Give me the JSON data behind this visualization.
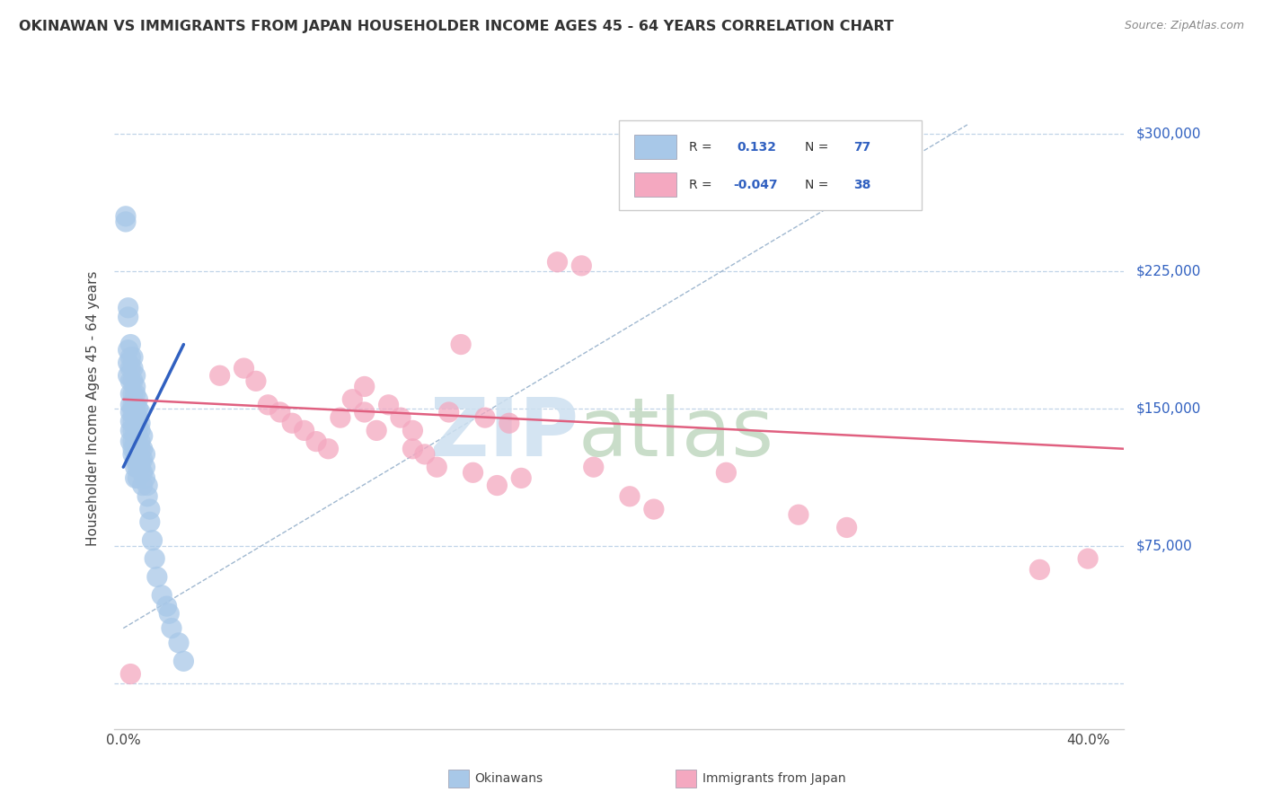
{
  "title": "OKINAWAN VS IMMIGRANTS FROM JAPAN HOUSEHOLDER INCOME AGES 45 - 64 YEARS CORRELATION CHART",
  "source": "Source: ZipAtlas.com",
  "ylabel": "Householder Income Ages 45 - 64 years",
  "yticks": [
    0,
    75000,
    150000,
    225000,
    300000
  ],
  "ytick_labels": [
    "",
    "$75,000",
    "$150,000",
    "$225,000",
    "$300,000"
  ],
  "ymin": -25000,
  "ymax": 325000,
  "xmin": -0.004,
  "xmax": 0.415,
  "blue_R": "0.132",
  "blue_N": "77",
  "pink_R": "-0.047",
  "pink_N": "38",
  "blue_color": "#a8c8e8",
  "pink_color": "#f4a8c0",
  "blue_line_color": "#3060c0",
  "pink_line_color": "#e06080",
  "legend_color": "#3060c0",
  "background_color": "#ffffff",
  "grid_color": "#c0d4e8",
  "blue_scatter_x": [
    0.001,
    0.001,
    0.002,
    0.002,
    0.002,
    0.002,
    0.002,
    0.003,
    0.003,
    0.003,
    0.003,
    0.003,
    0.003,
    0.003,
    0.003,
    0.003,
    0.003,
    0.004,
    0.004,
    0.004,
    0.004,
    0.004,
    0.004,
    0.004,
    0.004,
    0.004,
    0.004,
    0.004,
    0.005,
    0.005,
    0.005,
    0.005,
    0.005,
    0.005,
    0.005,
    0.005,
    0.005,
    0.005,
    0.005,
    0.005,
    0.006,
    0.006,
    0.006,
    0.006,
    0.006,
    0.006,
    0.006,
    0.006,
    0.006,
    0.007,
    0.007,
    0.007,
    0.007,
    0.007,
    0.007,
    0.007,
    0.008,
    0.008,
    0.008,
    0.008,
    0.008,
    0.009,
    0.009,
    0.009,
    0.01,
    0.01,
    0.011,
    0.011,
    0.012,
    0.013,
    0.014,
    0.016,
    0.018,
    0.019,
    0.02,
    0.023,
    0.025
  ],
  "blue_scatter_y": [
    255000,
    252000,
    200000,
    205000,
    182000,
    175000,
    168000,
    185000,
    178000,
    172000,
    165000,
    158000,
    152000,
    148000,
    143000,
    138000,
    132000,
    178000,
    172000,
    165000,
    158000,
    152000,
    148000,
    143000,
    138000,
    132000,
    128000,
    125000,
    168000,
    162000,
    158000,
    152000,
    148000,
    142000,
    138000,
    132000,
    128000,
    122000,
    118000,
    112000,
    155000,
    150000,
    145000,
    140000,
    135000,
    128000,
    122000,
    118000,
    112000,
    148000,
    142000,
    138000,
    132000,
    128000,
    122000,
    118000,
    135000,
    128000,
    122000,
    115000,
    108000,
    125000,
    118000,
    112000,
    108000,
    102000,
    95000,
    88000,
    78000,
    68000,
    58000,
    48000,
    42000,
    38000,
    30000,
    22000,
    12000
  ],
  "pink_scatter_x": [
    0.003,
    0.04,
    0.05,
    0.055,
    0.06,
    0.065,
    0.07,
    0.075,
    0.08,
    0.085,
    0.09,
    0.095,
    0.1,
    0.1,
    0.105,
    0.11,
    0.115,
    0.12,
    0.12,
    0.125,
    0.13,
    0.135,
    0.14,
    0.145,
    0.15,
    0.155,
    0.16,
    0.165,
    0.18,
    0.19,
    0.195,
    0.21,
    0.22,
    0.25,
    0.28,
    0.3,
    0.38,
    0.4
  ],
  "pink_scatter_y": [
    5000,
    168000,
    172000,
    165000,
    152000,
    148000,
    142000,
    138000,
    132000,
    128000,
    145000,
    155000,
    162000,
    148000,
    138000,
    152000,
    145000,
    128000,
    138000,
    125000,
    118000,
    148000,
    185000,
    115000,
    145000,
    108000,
    142000,
    112000,
    230000,
    228000,
    118000,
    102000,
    95000,
    115000,
    92000,
    85000,
    62000,
    68000
  ],
  "blue_trend_x": [
    0.0,
    0.025
  ],
  "blue_trend_y": [
    118000,
    185000
  ],
  "pink_trend_x": [
    0.0,
    0.415
  ],
  "pink_trend_y": [
    155000,
    128000
  ],
  "diag_line_x": [
    0.0,
    0.35
  ],
  "diag_line_y": [
    30000,
    305000
  ]
}
